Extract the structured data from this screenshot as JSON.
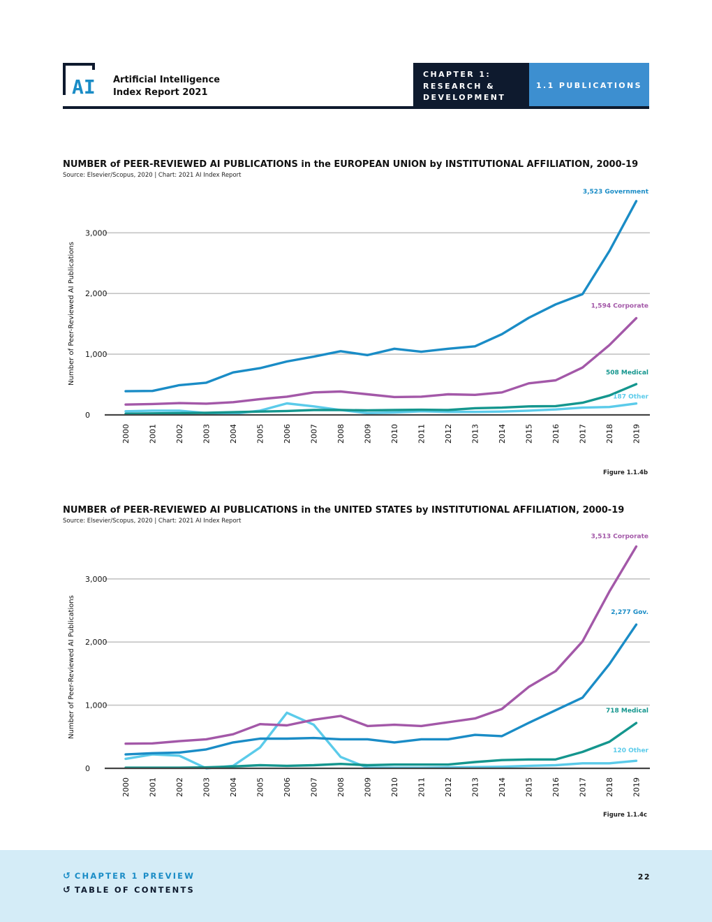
{
  "header": {
    "report_title_line1": "Artificial Intelligence",
    "report_title_line2": "Index Report 2021",
    "chapter_line1": "CHAPTER 1:",
    "chapter_line2": "RESEARCH &",
    "chapter_line3": "DEVELOPMENT",
    "section": "1.1 PUBLICATIONS"
  },
  "colors": {
    "government": "#1a8cc6",
    "corporate": "#a358a8",
    "medical": "#14968e",
    "other": "#5bcbea",
    "navy": "#0e1a2e",
    "accent_blue": "#3d8fd0",
    "footer_bg": "#d4ecf7",
    "link_blue": "#1a8cc6"
  },
  "chart_data": [
    {
      "type": "line",
      "title": "NUMBER of PEER-REVIEWED AI PUBLICATIONS in the EUROPEAN UNION by INSTITUTIONAL AFFILIATION, 2000-19",
      "source": "Source: Elsevier/Scopus, 2020 | Chart: 2021 AI Index Report",
      "ylabel": "Number of Peer-Reviewed AI Publications",
      "xlabel": "",
      "ylim": [
        0,
        3600
      ],
      "yticks": [
        0,
        1000,
        2000,
        3000
      ],
      "ytick_labels": [
        "0",
        "1,000",
        "2,000",
        "3,000"
      ],
      "grid": true,
      "x": [
        "2000",
        "2001",
        "2002",
        "2003",
        "2004",
        "2005",
        "2006",
        "2007",
        "2008",
        "2009",
        "2010",
        "2011",
        "2012",
        "2013",
        "2014",
        "2015",
        "2016",
        "2017",
        "2018",
        "2019"
      ],
      "series": [
        {
          "name": "Government",
          "color_key": "government",
          "end_label": "3,523 Government",
          "values": [
            390,
            395,
            490,
            530,
            700,
            770,
            880,
            960,
            1050,
            985,
            1090,
            1040,
            1090,
            1130,
            1330,
            1600,
            1820,
            1990,
            2700,
            3523
          ]
        },
        {
          "name": "Corporate",
          "color_key": "corporate",
          "end_label": "1,594 Corporate",
          "values": [
            170,
            180,
            195,
            185,
            210,
            260,
            300,
            370,
            385,
            340,
            295,
            300,
            340,
            330,
            370,
            520,
            570,
            780,
            1150,
            1594
          ]
        },
        {
          "name": "Medical",
          "color_key": "medical",
          "end_label": "508 Medical",
          "values": [
            20,
            25,
            30,
            35,
            45,
            55,
            65,
            80,
            80,
            75,
            80,
            85,
            80,
            110,
            120,
            140,
            145,
            200,
            320,
            508
          ]
        },
        {
          "name": "Other",
          "color_key": "other",
          "end_label": "187 Other",
          "values": [
            60,
            70,
            70,
            30,
            20,
            70,
            190,
            140,
            80,
            30,
            40,
            60,
            50,
            50,
            55,
            70,
            90,
            120,
            130,
            187
          ]
        }
      ],
      "figure_label": "Figure 1.1.4b"
    },
    {
      "type": "line",
      "title": "NUMBER of PEER-REVIEWED AI PUBLICATIONS in the UNITED STATES by INSTITUTIONAL AFFILIATION, 2000-19",
      "source": "Source: Elsevier/Scopus, 2020 | Chart: 2021 AI Index Report",
      "ylabel": "Number of Peer-Reviewed AI Publications",
      "xlabel": "",
      "ylim": [
        0,
        3600
      ],
      "yticks": [
        0,
        1000,
        2000,
        3000
      ],
      "ytick_labels": [
        "0",
        "1,000",
        "2,000",
        "3,000"
      ],
      "grid": true,
      "x": [
        "2000",
        "2001",
        "2002",
        "2003",
        "2004",
        "2005",
        "2006",
        "2007",
        "2008",
        "2009",
        "2010",
        "2011",
        "2012",
        "2013",
        "2014",
        "2015",
        "2016",
        "2017",
        "2018",
        "2019"
      ],
      "series": [
        {
          "name": "Corporate",
          "color_key": "corporate",
          "end_label": "3,513 Corporate",
          "values": [
            390,
            395,
            430,
            460,
            540,
            700,
            680,
            770,
            830,
            670,
            690,
            670,
            730,
            790,
            940,
            1290,
            1540,
            2010,
            2800,
            3513
          ]
        },
        {
          "name": "Gov.",
          "color_key": "government",
          "end_label": "2,277 Gov.",
          "values": [
            220,
            240,
            250,
            300,
            410,
            470,
            470,
            480,
            460,
            460,
            410,
            460,
            460,
            530,
            510,
            720,
            920,
            1120,
            1650,
            2277
          ]
        },
        {
          "name": "Medical",
          "color_key": "medical",
          "end_label": "718 Medical",
          "values": [
            10,
            10,
            10,
            15,
            30,
            50,
            40,
            50,
            70,
            50,
            60,
            60,
            60,
            100,
            130,
            140,
            140,
            260,
            420,
            718
          ]
        },
        {
          "name": "Other",
          "color_key": "other",
          "end_label": "120 Other",
          "values": [
            150,
            220,
            200,
            0,
            40,
            330,
            880,
            690,
            180,
            10,
            10,
            10,
            15,
            20,
            25,
            40,
            50,
            80,
            80,
            120
          ]
        }
      ],
      "figure_label": "Figure 1.1.4c"
    }
  ],
  "footer": {
    "link1": "CHAPTER 1 PREVIEW",
    "link2": "TABLE OF CONTENTS",
    "page_number": "22"
  }
}
